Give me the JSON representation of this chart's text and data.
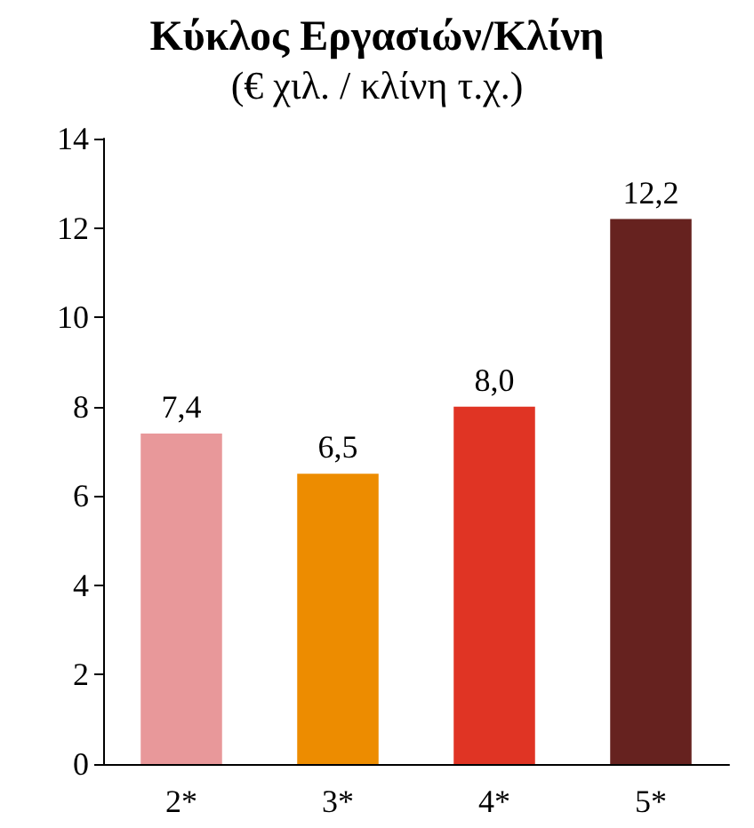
{
  "chart_data": {
    "type": "bar",
    "title": "Κύκλος Εργασιών/Κλίνη",
    "subtitle": "(€ χιλ. / κλίνη τ.χ.)",
    "categories": [
      "2*",
      "3*",
      "4*",
      "5*"
    ],
    "values": [
      7.4,
      6.5,
      8.0,
      12.2
    ],
    "colors": [
      "#e8989a",
      "#ed8c00",
      "#e03424",
      "#66221f"
    ],
    "value_labels": [
      "7,4",
      "6,5",
      "8,0",
      "12,2"
    ],
    "ylim": [
      0,
      14
    ],
    "yticks": [
      0,
      2,
      4,
      6,
      8,
      10,
      12,
      14
    ],
    "grid": false
  }
}
